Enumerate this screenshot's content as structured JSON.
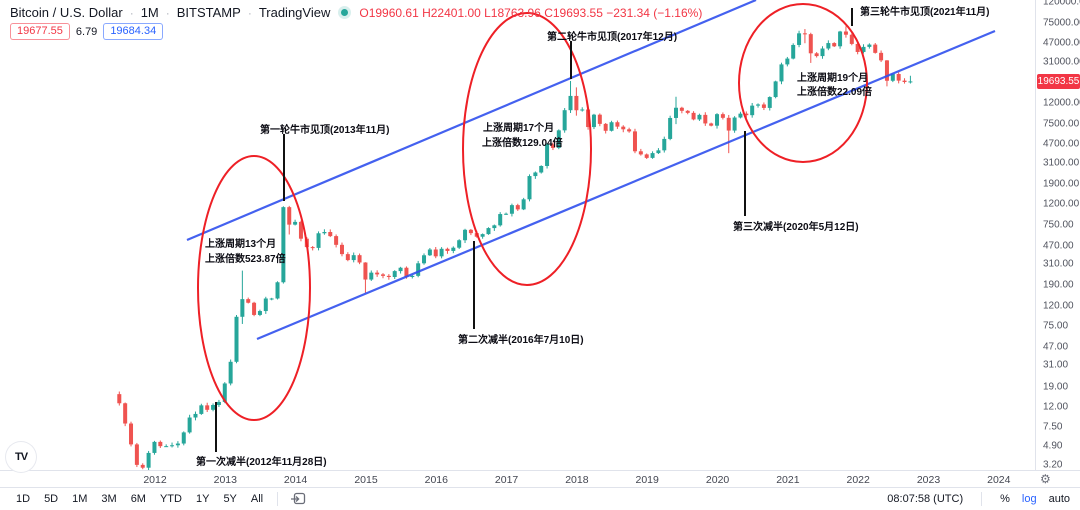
{
  "header": {
    "symbol": "Bitcoin / U.S. Dollar",
    "interval": "1M",
    "exchange": "BITSTAMP",
    "platform": "TradingView",
    "separator": "·",
    "ohlc": "O19960.61 H22401.00 L18763.96 C19693.55 −231.34 (−1.16%)",
    "bid": "19677.55",
    "spread": "6.79",
    "ask": "19684.34"
  },
  "annotations": {
    "peak1": {
      "title": "第一轮牛市见顶(2013年11月)",
      "cycle": "上涨周期13个月",
      "multiple": "上涨倍数523.87倍"
    },
    "peak2": {
      "title": "第二轮牛市见顶(2017年12月)",
      "cycle": "上涨周期17个月",
      "multiple": "上涨倍数129.04倍"
    },
    "peak3": {
      "title": "第三轮牛市见顶(2021年11月)",
      "cycle": "上涨周期19个月",
      "multiple": "上涨倍数22.09倍"
    },
    "halving1": "第一次减半(2012年11月28日)",
    "halving2": "第二次减半(2016年7月10日)",
    "halving3": "第三次减半(2020年5月12日)"
  },
  "axis": {
    "price_tick_values": [
      120000,
      75000,
      47000,
      31000,
      12000,
      7500,
      4700,
      3100,
      1900,
      1200,
      750,
      470,
      310,
      190,
      120,
      75,
      47,
      31,
      19,
      12,
      7.5,
      4.9,
      3.2
    ],
    "years": [
      2012,
      2013,
      2014,
      2015,
      2016,
      2017,
      2018,
      2019,
      2020,
      2021,
      2022,
      2023,
      2024
    ],
    "last_price": "19693.55"
  },
  "toolbar": {
    "ranges": [
      "1D",
      "5D",
      "1M",
      "3M",
      "6M",
      "YTD",
      "1Y",
      "5Y",
      "All"
    ],
    "clock": "08:07:58 (UTC)",
    "percent_label": "%",
    "log_label": "log",
    "auto_label": "auto"
  },
  "icons": {
    "settings_gear": "⚙",
    "tradingview_logo": "TV"
  },
  "colors": {
    "up": "#26a69a",
    "down": "#ef5350",
    "trendline": "#3050ee",
    "highlight": "#ee2026",
    "marker": "#111111",
    "badge_red": "#f23645",
    "accent_blue": "#2962ff"
  },
  "chart_data": {
    "type": "candlestick",
    "symbol": "BTCUSD",
    "timeframe": "1M",
    "scale": "log",
    "start_month": "2011-07",
    "first_open": 16,
    "monthly_closes": [
      13.0,
      8.2,
      5.1,
      3.2,
      3.0,
      4.2,
      5.4,
      4.9,
      4.9,
      5.0,
      5.2,
      6.7,
      9.4,
      10.2,
      12.4,
      11.2,
      12.5,
      13.4,
      20.4,
      33.4,
      93,
      139,
      128,
      97,
      106,
      141,
      141,
      204,
      1127,
      757,
      806,
      550,
      454,
      446,
      622,
      640,
      583,
      478,
      387,
      338,
      378,
      320,
      217,
      254,
      244,
      236,
      230,
      263,
      284,
      230,
      236,
      314,
      377,
      430,
      368,
      437,
      416,
      448,
      531,
      673,
      624,
      575,
      610,
      700,
      745,
      963,
      970,
      1180,
      1071,
      1347,
      2286,
      2480,
      2875,
      4703,
      4338,
      6468,
      10233,
      14156,
      10221,
      10397,
      6973,
      9240,
      7494,
      6404,
      7780,
      7037,
      6625,
      6317,
      4017,
      3742,
      3457,
      3854,
      4105,
      5320,
      8574,
      10817,
      10085,
      9630,
      8293,
      9199,
      7569,
      7193,
      9350,
      8599,
      6438,
      8658,
      9461,
      9137,
      11351,
      11655,
      10776,
      13797,
      19698,
      29002,
      33114,
      45137,
      58800,
      57750,
      37332,
      35041,
      41626,
      47130,
      43791,
      61320,
      56987,
      46217,
      38483,
      43193,
      45539,
      37714,
      31792,
      19986,
      23307,
      20050,
      19432,
      19693.55
    ],
    "wick_overrides": {
      "21": [
        266,
        79
      ],
      "28": [
        1150,
        198
      ],
      "29": [
        1160,
        605
      ],
      "42": [
        322,
        160
      ],
      "77": [
        19891,
        9600
      ],
      "78": [
        17200,
        9035
      ],
      "95": [
        13880,
        7450
      ],
      "104": [
        9180,
        3850
      ],
      "117": [
        64854,
        46950
      ],
      "118": [
        59600,
        30000
      ],
      "124": [
        69000,
        53300
      ],
      "131": [
        31950,
        17600
      ],
      "135": [
        22401,
        18763.96
      ]
    }
  }
}
